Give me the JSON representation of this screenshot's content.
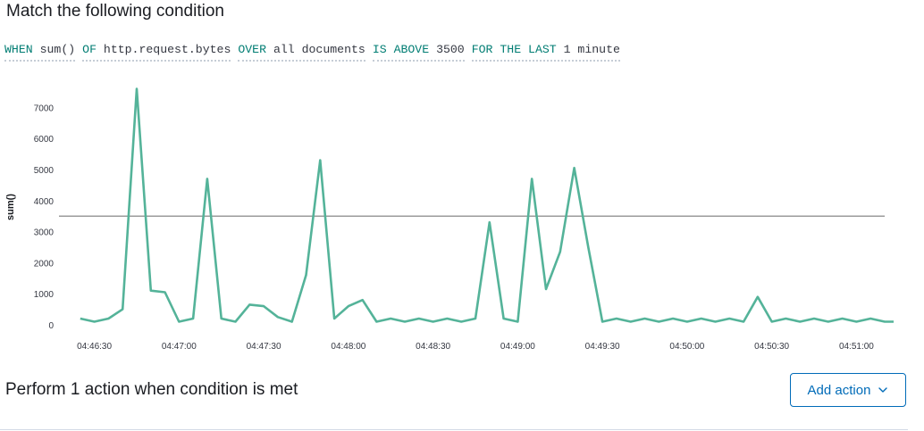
{
  "condition": {
    "title": "Match the following condition",
    "expression": {
      "when_kw": "WHEN",
      "agg": "sum()",
      "of_kw": "OF",
      "field": "http.request.bytes",
      "over_kw": "OVER",
      "over_val": "all documents",
      "is_above_kw": "IS ABOVE",
      "threshold": "3500",
      "for_last_kw": "FOR THE LAST",
      "window": "1 minute"
    }
  },
  "colors": {
    "series": "#54b399",
    "threshold_line": "#7a7a7a",
    "keyword": "#017d73",
    "button": "#006bb8"
  },
  "chart_data": {
    "type": "line",
    "ylabel": "sum()",
    "ylim": [
      0,
      7700
    ],
    "yticks": [
      0,
      1000,
      2000,
      3000,
      4000,
      5000,
      6000,
      7000
    ],
    "ytick_labels": [
      "0",
      "1000",
      "2000",
      "3000",
      "4000",
      "5000",
      "6000",
      "7000"
    ],
    "x_range": [
      "04:46:20",
      "04:51:10"
    ],
    "xtick_values": [
      30,
      60,
      90,
      120,
      150,
      180,
      210,
      240,
      270,
      300
    ],
    "xtick_labels": [
      "04:46:30",
      "04:47:00",
      "04:47:30",
      "04:48:00",
      "04:48:30",
      "04:49:00",
      "04:49:30",
      "04:50:00",
      "04:50:30",
      "04:51:00"
    ],
    "threshold": 3500,
    "series": [
      {
        "x": [
          25,
          30,
          35,
          40,
          45,
          50,
          55,
          60,
          65,
          70,
          75,
          80,
          85,
          90,
          95,
          100,
          105,
          110,
          115,
          120,
          125,
          130,
          135,
          140,
          145,
          150,
          155,
          160,
          165,
          170,
          175,
          180,
          185,
          190,
          195,
          200,
          205,
          210,
          215,
          220,
          225,
          230,
          235,
          240,
          245,
          250,
          255,
          260,
          265,
          270,
          275,
          280,
          285,
          290,
          295,
          300,
          305,
          310,
          315
        ],
        "values": [
          200,
          100,
          200,
          500,
          7600,
          1100,
          1050,
          100,
          200,
          4700,
          200,
          100,
          650,
          600,
          250,
          100,
          1600,
          5300,
          200,
          600,
          800,
          100,
          200,
          100,
          200,
          100,
          200,
          100,
          200,
          3300,
          200,
          100,
          4700,
          1150,
          2350,
          5050,
          2500,
          100,
          200,
          100,
          200,
          100,
          200,
          100,
          200,
          100,
          200,
          100,
          900,
          100,
          200,
          100,
          200,
          100,
          200,
          100,
          200,
          100,
          100
        ]
      }
    ]
  },
  "actions": {
    "heading": "Perform 1 action when condition is met",
    "add_button_label": "Add action"
  }
}
